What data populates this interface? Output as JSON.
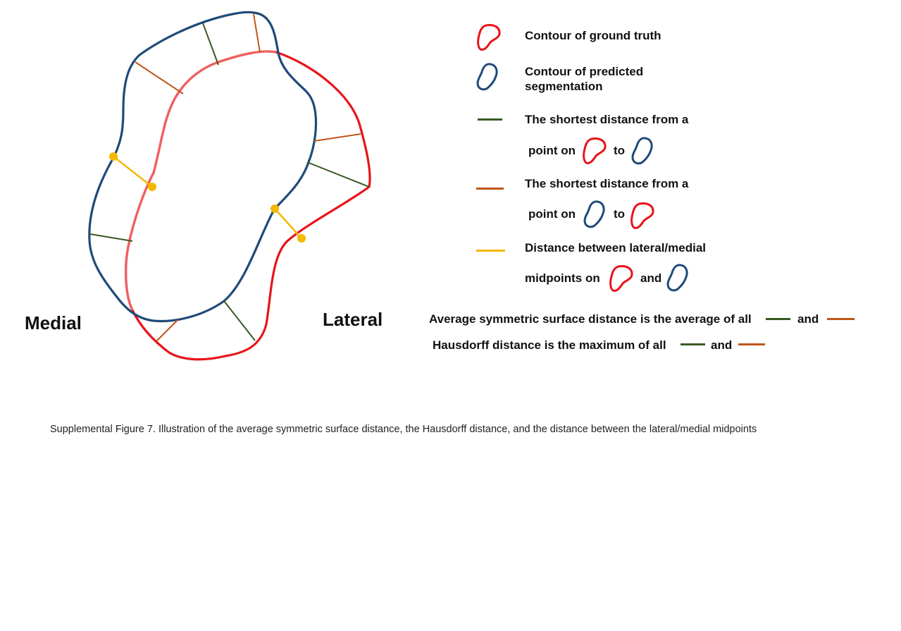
{
  "labels": {
    "medial": "Medial",
    "lateral": "Lateral"
  },
  "legend": {
    "ground_truth": "Contour of ground truth",
    "predicted_line1": "Contour of predicted",
    "predicted_line2": "segmentation",
    "gt_to_pred_line1": "The shortest distance from a",
    "gt_to_pred_point_on": "point on",
    "gt_to_pred_to": "to",
    "pred_to_gt_line1": "The shortest distance from a",
    "pred_to_gt_point_on": "point on",
    "pred_to_gt_to": "to",
    "midpoint_line1": "Distance between lateral/medial",
    "midpoint_line2": "midpoints on",
    "midpoint_and": "and"
  },
  "summary": {
    "assd_text": "Average symmetric surface distance is the average of  all",
    "assd_and": "and",
    "hd_text": "Hausdorff distance is the maximum of all",
    "hd_and": "and"
  },
  "caption": "Supplemental Figure 7. Illustration of the average symmetric surface distance, the Hausdorff distance, and the distance between the lateral/medial midpoints",
  "colors": {
    "ground_truth": "#e8141a",
    "ground_truth_light": "#f06060",
    "predicted": "#1f4a78",
    "gt_to_pred": "#3a5a22",
    "pred_to_gt": "#c0561a",
    "midpoint": "#f5b800"
  }
}
